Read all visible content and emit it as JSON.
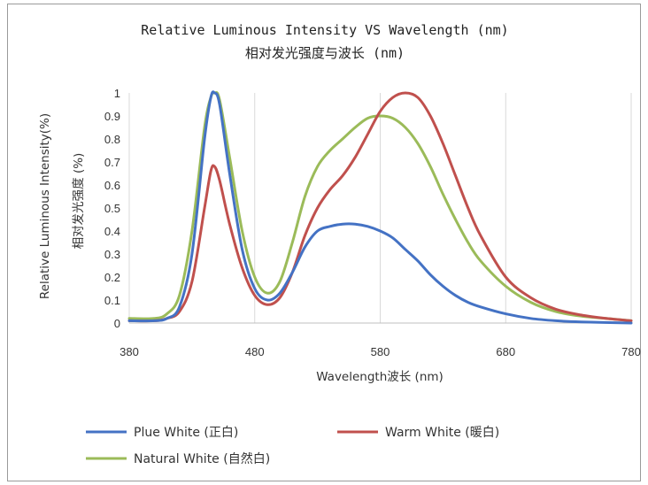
{
  "chart_data": {
    "type": "line",
    "title_line1": "Relative Luminous Intensity VS Wavelength (nm)",
    "title_line2": "相对发光强度与波长 (nm)",
    "xlabel": "Wavelength波长 (nm)",
    "ylabel_line1": "Relative Luminous Intensity(%)",
    "ylabel_line2": "相对发光强度 (%)",
    "xlim": [
      380,
      780
    ],
    "ylim": [
      0,
      1
    ],
    "x_ticks": [
      "380",
      "480",
      "580",
      "680",
      "780"
    ],
    "y_ticks": [
      "0",
      "0.1",
      "0.2",
      "0.3",
      "0.4",
      "0.5",
      "0.6",
      "0.7",
      "0.8",
      "0.9",
      "1"
    ],
    "grid": "vertical",
    "legend_position": "bottom",
    "series": [
      {
        "name": "Plue White (正白)",
        "color": "#4472c4",
        "points": [
          [
            380,
            0.01
          ],
          [
            400,
            0.01
          ],
          [
            410,
            0.02
          ],
          [
            420,
            0.07
          ],
          [
            430,
            0.3
          ],
          [
            440,
            0.8
          ],
          [
            445,
            0.98
          ],
          [
            448,
            1.0
          ],
          [
            452,
            0.95
          ],
          [
            460,
            0.65
          ],
          [
            470,
            0.32
          ],
          [
            480,
            0.15
          ],
          [
            490,
            0.1
          ],
          [
            500,
            0.13
          ],
          [
            510,
            0.22
          ],
          [
            520,
            0.33
          ],
          [
            530,
            0.4
          ],
          [
            540,
            0.42
          ],
          [
            550,
            0.43
          ],
          [
            560,
            0.43
          ],
          [
            570,
            0.42
          ],
          [
            580,
            0.4
          ],
          [
            590,
            0.37
          ],
          [
            600,
            0.32
          ],
          [
            610,
            0.27
          ],
          [
            620,
            0.21
          ],
          [
            630,
            0.16
          ],
          [
            640,
            0.12
          ],
          [
            650,
            0.09
          ],
          [
            660,
            0.07
          ],
          [
            680,
            0.04
          ],
          [
            700,
            0.02
          ],
          [
            720,
            0.01
          ],
          [
            740,
            0.005
          ],
          [
            780,
            0.0
          ]
        ]
      },
      {
        "name": "Warm White (暖白)",
        "color": "#c0504d",
        "points": [
          [
            380,
            0.01
          ],
          [
            400,
            0.01
          ],
          [
            410,
            0.02
          ],
          [
            420,
            0.05
          ],
          [
            430,
            0.18
          ],
          [
            440,
            0.5
          ],
          [
            445,
            0.66
          ],
          [
            448,
            0.68
          ],
          [
            452,
            0.62
          ],
          [
            460,
            0.43
          ],
          [
            470,
            0.24
          ],
          [
            480,
            0.12
          ],
          [
            490,
            0.08
          ],
          [
            500,
            0.11
          ],
          [
            510,
            0.22
          ],
          [
            520,
            0.38
          ],
          [
            530,
            0.5
          ],
          [
            540,
            0.58
          ],
          [
            550,
            0.64
          ],
          [
            560,
            0.72
          ],
          [
            570,
            0.82
          ],
          [
            580,
            0.92
          ],
          [
            590,
            0.98
          ],
          [
            600,
            1.0
          ],
          [
            610,
            0.98
          ],
          [
            620,
            0.9
          ],
          [
            630,
            0.78
          ],
          [
            640,
            0.64
          ],
          [
            650,
            0.5
          ],
          [
            660,
            0.38
          ],
          [
            680,
            0.2
          ],
          [
            700,
            0.11
          ],
          [
            720,
            0.06
          ],
          [
            740,
            0.035
          ],
          [
            760,
            0.02
          ],
          [
            780,
            0.01
          ]
        ]
      },
      {
        "name": "Natural White (自然白)",
        "color": "#9bbb59",
        "points": [
          [
            380,
            0.02
          ],
          [
            400,
            0.02
          ],
          [
            410,
            0.04
          ],
          [
            420,
            0.12
          ],
          [
            430,
            0.4
          ],
          [
            440,
            0.85
          ],
          [
            445,
            0.98
          ],
          [
            448,
            1.0
          ],
          [
            452,
            0.97
          ],
          [
            460,
            0.72
          ],
          [
            470,
            0.4
          ],
          [
            480,
            0.2
          ],
          [
            490,
            0.13
          ],
          [
            500,
            0.18
          ],
          [
            510,
            0.35
          ],
          [
            520,
            0.55
          ],
          [
            530,
            0.68
          ],
          [
            540,
            0.75
          ],
          [
            550,
            0.8
          ],
          [
            560,
            0.85
          ],
          [
            570,
            0.89
          ],
          [
            580,
            0.9
          ],
          [
            590,
            0.89
          ],
          [
            600,
            0.85
          ],
          [
            610,
            0.78
          ],
          [
            620,
            0.68
          ],
          [
            630,
            0.56
          ],
          [
            640,
            0.45
          ],
          [
            650,
            0.35
          ],
          [
            660,
            0.27
          ],
          [
            680,
            0.16
          ],
          [
            700,
            0.09
          ],
          [
            720,
            0.05
          ],
          [
            740,
            0.03
          ],
          [
            760,
            0.02
          ],
          [
            780,
            0.01
          ]
        ]
      }
    ]
  }
}
